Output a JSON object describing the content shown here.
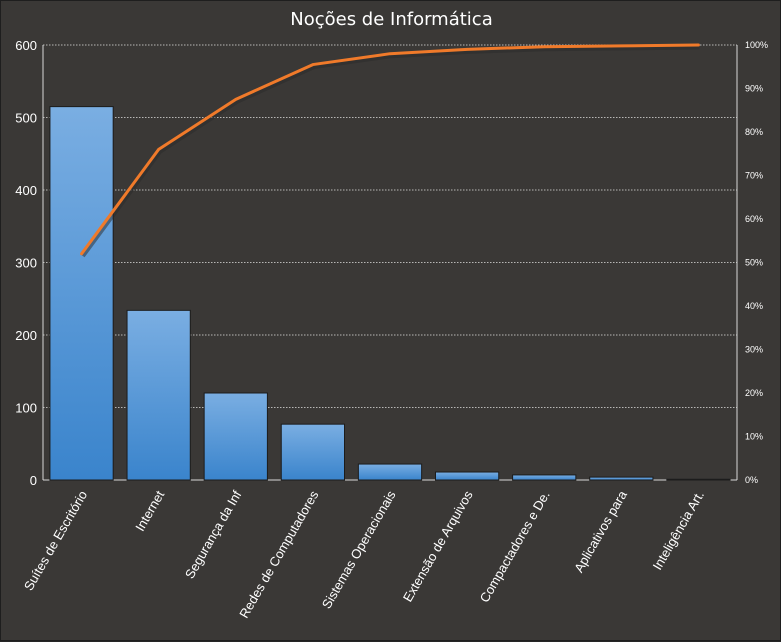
{
  "chart_data": {
    "type": "bar",
    "title": "Noções de Informática",
    "categories": [
      "Suítes de Escritório",
      "Internet",
      "Segurança da Inf",
      "Redes de Computadores",
      "Sistemas Operacionais",
      "Extensão de Arquivos",
      "Compactadores e De.",
      "Aplicativos para",
      "Inteligência Art."
    ],
    "series": [
      {
        "type": "bar",
        "values": [
          515,
          234,
          120,
          77,
          22,
          11,
          7,
          4,
          1
        ]
      },
      {
        "type": "line",
        "axis": "right",
        "values": [
          52,
          76,
          87.5,
          95.5,
          98,
          99,
          99.6,
          99.8,
          100
        ]
      }
    ],
    "ylim": [
      0,
      600
    ],
    "yticks": [
      0,
      100,
      200,
      300,
      400,
      500,
      600
    ],
    "y2lim": [
      0,
      100
    ],
    "y2ticks": [
      "0%",
      "10%",
      "20%",
      "30%",
      "40%",
      "50%",
      "60%",
      "70%",
      "80%",
      "90%",
      "100%"
    ],
    "grid": true,
    "legend": "none",
    "colors": {
      "background": "#3a3836",
      "bar_top": "#7aaee2",
      "bar_bottom": "#3a84cc",
      "line": "#f07a2a",
      "grid": "#ffffff",
      "text": "#ffffff"
    }
  }
}
